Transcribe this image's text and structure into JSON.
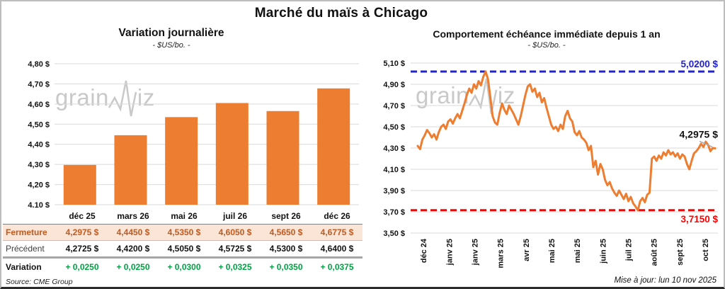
{
  "page": {
    "title": "Marché du maïs à Chicago",
    "source": "Source: CME Group",
    "updated": "Mise à jour: lun 10 nov 2025",
    "watermark": [
      "grain",
      "iz"
    ]
  },
  "colors": {
    "accent_orange": "#ED7D31",
    "reference_blue": "#2424C8",
    "reference_red": "#FF0000",
    "variation_green": "#00A342",
    "fermeture_text": "#C25A20",
    "fermeture_bg": "#FBE5D6",
    "grid": "#D9D9D9",
    "watermark_gray": "#C9C9C9"
  },
  "chart_data": [
    {
      "type": "bar",
      "title": "Variation journalière",
      "subtitle": "- $US/bo. -",
      "categories": [
        "déc 25",
        "mars 26",
        "mai 26",
        "juil 26",
        "sept 26",
        "déc 26"
      ],
      "values": [
        4.2975,
        4.445,
        4.535,
        4.605,
        4.565,
        4.6775
      ],
      "ylim": [
        4.1,
        4.8
      ],
      "ytick_step": 0.1,
      "grid": true,
      "bar_color": "#ED7D31"
    },
    {
      "type": "line",
      "title": "Comportement échéance immédiate depuis 1 an",
      "subtitle": "- $US/bo. -",
      "x_labels": [
        "déc 24",
        "janv 25",
        "janv 25",
        "mars 25",
        "avr 25",
        "mai 25",
        "mai 25",
        "juin 25",
        "juil 25",
        "août 25",
        "sept 25",
        "oct 25"
      ],
      "ylim": [
        3.5,
        5.1
      ],
      "ytick_step": 0.2,
      "grid": true,
      "line_color": "#ED7D31",
      "reference_lines": [
        {
          "value": 5.02,
          "label": "5,0200 $",
          "color": "#2424C8",
          "label_position": "above"
        },
        {
          "value": 3.715,
          "label": "3,7150 $",
          "color": "#FF0000",
          "label_position": "below"
        }
      ],
      "last_value_label": "4,2975 $",
      "values": [
        4.32,
        4.29,
        4.38,
        4.42,
        4.47,
        4.44,
        4.4,
        4.43,
        4.38,
        4.45,
        4.5,
        4.52,
        4.48,
        4.55,
        4.57,
        4.53,
        4.58,
        4.62,
        4.58,
        4.65,
        4.72,
        4.8,
        4.86,
        4.82,
        4.9,
        4.86,
        4.93,
        4.89,
        4.97,
        5.02,
        4.95,
        4.78,
        4.6,
        4.54,
        4.52,
        4.63,
        4.72,
        4.66,
        4.62,
        4.7,
        4.66,
        4.62,
        4.57,
        4.52,
        4.6,
        4.7,
        4.8,
        4.88,
        4.9,
        4.83,
        4.86,
        4.78,
        4.82,
        4.73,
        4.77,
        4.68,
        4.6,
        4.52,
        4.48,
        4.5,
        4.46,
        4.52,
        4.48,
        4.6,
        4.65,
        4.58,
        4.55,
        4.45,
        4.42,
        4.46,
        4.4,
        4.38,
        4.35,
        4.28,
        4.32,
        4.12,
        4.18,
        4.05,
        4.15,
        4.1,
        4.0,
        3.95,
        3.98,
        3.92,
        3.88,
        3.85,
        3.9,
        3.86,
        3.82,
        3.87,
        3.8,
        3.84,
        3.78,
        3.75,
        3.715,
        3.8,
        3.83,
        3.79,
        3.86,
        3.88,
        4.2,
        4.22,
        4.18,
        4.23,
        4.2,
        4.26,
        4.23,
        4.28,
        4.24,
        4.26,
        4.22,
        4.25,
        4.2,
        4.24,
        4.22,
        4.15,
        4.1,
        4.18,
        4.25,
        4.27,
        4.3,
        4.34,
        4.31,
        4.36,
        4.33,
        4.27,
        4.3,
        4.2975
      ]
    }
  ],
  "table": {
    "columns": [
      "déc 25",
      "mars 26",
      "mai 26",
      "juil 26",
      "sept 26",
      "déc 26"
    ],
    "rows": [
      {
        "label": "Fermeture",
        "style": "fermeture",
        "values": [
          "4,2975 $",
          "4,4450 $",
          "4,5350 $",
          "4,6050 $",
          "4,5650 $",
          "4,6775 $"
        ]
      },
      {
        "label": "Précédent",
        "style": "precedent",
        "values": [
          "4,2725 $",
          "4,4200 $",
          "4,5050 $",
          "4,5725 $",
          "4,5300 $",
          "4,6400 $"
        ]
      },
      {
        "label": "Variation",
        "style": "variation",
        "values": [
          "+ 0,0250",
          "+ 0,0250",
          "+ 0,0300",
          "+ 0,0325",
          "+ 0,0350",
          "+ 0,0375"
        ]
      }
    ]
  }
}
